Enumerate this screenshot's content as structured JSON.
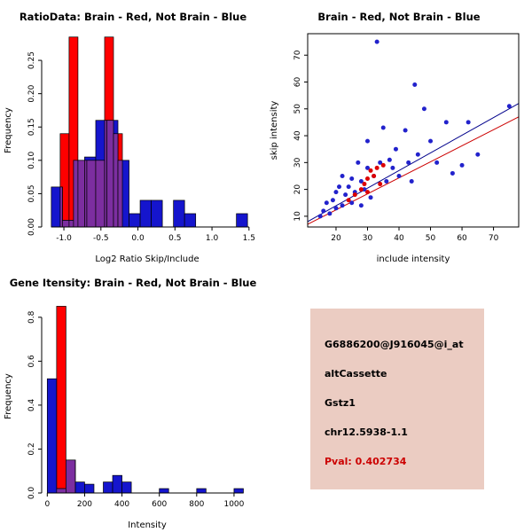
{
  "info_panel": {
    "bg": "#ebccc2",
    "lines": [
      {
        "text": "G6886200@J916045@i_at",
        "color": "#000000"
      },
      {
        "text": "altCassette",
        "color": "#000000"
      },
      {
        "text": "Gstz1",
        "color": "#000000"
      },
      {
        "text": "chr12.5938-1.1",
        "color": "#cc0000",
        "_note_color": "#000000"
      },
      {
        "text": "Pval: 0.402734",
        "color": "#cc0000"
      }
    ]
  },
  "chart_data": [
    {
      "type": "bar",
      "title": "RatioData: Brain - Red, Not Brain - Blue",
      "xlabel": "Log2 Ratio Skip/Include",
      "ylabel": "Frequency",
      "xlim": [
        -1.3,
        1.55
      ],
      "ylim": [
        0,
        0.29
      ],
      "box": false,
      "grid": false,
      "xticks": {
        "values": [
          -1.0,
          -0.5,
          0.0,
          0.5,
          1.0,
          1.5
        ],
        "labels": [
          "-1.0",
          "-0.5",
          "0.0",
          "0.5",
          "1.0",
          "1.5"
        ]
      },
      "yticks": {
        "values": [
          0,
          0.05,
          0.1,
          0.15,
          0.2,
          0.25
        ],
        "labels": [
          "0.00",
          "0.05",
          "0.10",
          "0.15",
          "0.20",
          "0.25"
        ]
      },
      "overlap_color": "#7c2ea0",
      "series": [
        {
          "name": "Brain",
          "color": "#ff0000",
          "bins": [
            {
              "x0": -1.05,
              "x1": -0.93,
              "h": 0.14
            },
            {
              "x0": -0.93,
              "x1": -0.81,
              "h": 0.285
            },
            {
              "x0": -0.81,
              "x1": -0.69,
              "h": 0.1
            },
            {
              "x0": -0.69,
              "x1": -0.57,
              "h": 0.1
            },
            {
              "x0": -0.57,
              "x1": -0.45,
              "h": 0.1
            },
            {
              "x0": -0.45,
              "x1": -0.33,
              "h": 0.285
            },
            {
              "x0": -0.33,
              "x1": -0.21,
              "h": 0.14
            }
          ]
        },
        {
          "name": "Not Brain",
          "color": "#1515cd",
          "bins": [
            {
              "x0": -1.17,
              "x1": -1.02,
              "h": 0.06
            },
            {
              "x0": -1.02,
              "x1": -0.87,
              "h": 0.01
            },
            {
              "x0": -0.87,
              "x1": -0.72,
              "h": 0.1
            },
            {
              "x0": -0.72,
              "x1": -0.57,
              "h": 0.105
            },
            {
              "x0": -0.57,
              "x1": -0.42,
              "h": 0.16
            },
            {
              "x0": -0.42,
              "x1": -0.27,
              "h": 0.16
            },
            {
              "x0": -0.27,
              "x1": -0.12,
              "h": 0.1
            },
            {
              "x0": -0.12,
              "x1": 0.03,
              "h": 0.02
            },
            {
              "x0": 0.03,
              "x1": 0.18,
              "h": 0.04
            },
            {
              "x0": 0.18,
              "x1": 0.33,
              "h": 0.04
            },
            {
              "x0": 0.48,
              "x1": 0.63,
              "h": 0.04
            },
            {
              "x0": 0.63,
              "x1": 0.78,
              "h": 0.02
            },
            {
              "x0": 1.33,
              "x1": 1.48,
              "h": 0.02
            }
          ]
        }
      ]
    },
    {
      "type": "scatter",
      "title": "Brain - Red, Not Brain - Blue",
      "xlabel": "include intensity",
      "ylabel": "skip intensity",
      "xlim": [
        11,
        78
      ],
      "ylim": [
        6,
        78
      ],
      "box": true,
      "grid": false,
      "xticks": {
        "values": [
          20,
          30,
          40,
          50,
          60,
          70
        ],
        "labels": [
          "20",
          "30",
          "40",
          "50",
          "60",
          "70"
        ]
      },
      "yticks": {
        "values": [
          10,
          20,
          30,
          40,
          50,
          60,
          70
        ],
        "labels": [
          "10",
          "20",
          "30",
          "40",
          "50",
          "60",
          "70"
        ]
      },
      "lines": [
        {
          "x": [
            11,
            78
          ],
          "y": [
            8,
            52
          ],
          "color": "#00008b"
        },
        {
          "x": [
            11,
            78
          ],
          "y": [
            7,
            47
          ],
          "color": "#cc0000"
        }
      ],
      "series": [
        {
          "name": "Not Brain",
          "color": "#2222cc",
          "points": [
            [
              15,
              10
            ],
            [
              16,
              12
            ],
            [
              17,
              15
            ],
            [
              18,
              11
            ],
            [
              19,
              16
            ],
            [
              20,
              13
            ],
            [
              20,
              19
            ],
            [
              21,
              21
            ],
            [
              22,
              14
            ],
            [
              22,
              25
            ],
            [
              23,
              18
            ],
            [
              24,
              21
            ],
            [
              25,
              15
            ],
            [
              25,
              24
            ],
            [
              26,
              19
            ],
            [
              27,
              30
            ],
            [
              28,
              14
            ],
            [
              28,
              23
            ],
            [
              29,
              20
            ],
            [
              30,
              28
            ],
            [
              30,
              38
            ],
            [
              31,
              17
            ],
            [
              32,
              25
            ],
            [
              33,
              75
            ],
            [
              34,
              30
            ],
            [
              35,
              43
            ],
            [
              36,
              23
            ],
            [
              37,
              31
            ],
            [
              38,
              28
            ],
            [
              39,
              35
            ],
            [
              40,
              25
            ],
            [
              42,
              42
            ],
            [
              43,
              30
            ],
            [
              44,
              23
            ],
            [
              45,
              59
            ],
            [
              46,
              33
            ],
            [
              48,
              50
            ],
            [
              50,
              38
            ],
            [
              52,
              30
            ],
            [
              55,
              45
            ],
            [
              57,
              26
            ],
            [
              60,
              29
            ],
            [
              62,
              45
            ],
            [
              65,
              33
            ],
            [
              75,
              51
            ]
          ]
        },
        {
          "name": "Brain",
          "color": "#dd0000",
          "points": [
            [
              24,
              16
            ],
            [
              26,
              18
            ],
            [
              28,
              20
            ],
            [
              29,
              22
            ],
            [
              30,
              19
            ],
            [
              30,
              24
            ],
            [
              31,
              27
            ],
            [
              32,
              25
            ],
            [
              33,
              28
            ],
            [
              34,
              22
            ],
            [
              35,
              29
            ]
          ]
        }
      ]
    },
    {
      "type": "bar",
      "title": "Gene Itensity: Brain - Red, Not Brain - Blue",
      "xlabel": "Intensity",
      "ylabel": "Frequency",
      "xlim": [
        -30,
        1100
      ],
      "ylim": [
        0,
        0.88
      ],
      "box": false,
      "grid": false,
      "xticks": {
        "values": [
          0,
          200,
          400,
          600,
          800,
          1000
        ],
        "labels": [
          "0",
          "200",
          "400",
          "600",
          "800",
          "1000"
        ]
      },
      "yticks": {
        "values": [
          0,
          0.2,
          0.4,
          0.6,
          0.8
        ],
        "labels": [
          "0.0",
          "0.2",
          "0.4",
          "0.6",
          "0.8"
        ]
      },
      "overlap_color": "#7c2ea0",
      "series": [
        {
          "name": "Brain",
          "color": "#ff0000",
          "bins": [
            {
              "x0": 50,
              "x1": 100,
              "h": 0.85
            },
            {
              "x0": 100,
              "x1": 150,
              "h": 0.15
            }
          ]
        },
        {
          "name": "Not Brain",
          "color": "#1515cd",
          "bins": [
            {
              "x0": 0,
              "x1": 50,
              "h": 0.52
            },
            {
              "x0": 50,
              "x1": 100,
              "h": 0.02
            },
            {
              "x0": 100,
              "x1": 150,
              "h": 0.15
            },
            {
              "x0": 150,
              "x1": 200,
              "h": 0.05
            },
            {
              "x0": 200,
              "x1": 250,
              "h": 0.04
            },
            {
              "x0": 300,
              "x1": 350,
              "h": 0.05
            },
            {
              "x0": 350,
              "x1": 400,
              "h": 0.08
            },
            {
              "x0": 400,
              "x1": 450,
              "h": 0.05
            },
            {
              "x0": 600,
              "x1": 650,
              "h": 0.02
            },
            {
              "x0": 800,
              "x1": 850,
              "h": 0.02
            },
            {
              "x0": 1000,
              "x1": 1050,
              "h": 0.02
            }
          ]
        }
      ]
    }
  ]
}
